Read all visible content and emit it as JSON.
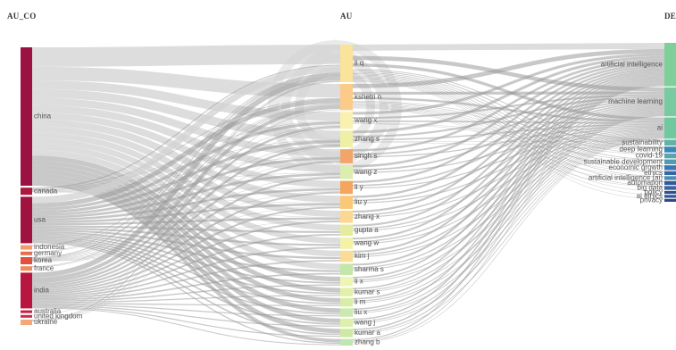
{
  "columns": {
    "left": "AU_CO",
    "middle": "AU",
    "right": "DE"
  },
  "chart_data": {
    "type": "sankey",
    "left_nodes": [
      {
        "label": "china",
        "color": "#9b1142",
        "weight": 155
      },
      {
        "label": "canada",
        "color": "#b0173f",
        "weight": 8
      },
      {
        "label": "usa",
        "color": "#a0123f",
        "weight": 52
      },
      {
        "label": "indonesia",
        "color": "#f59a6a",
        "weight": 5
      },
      {
        "label": "germany",
        "color": "#e86d4a",
        "weight": 4
      },
      {
        "label": "korea",
        "color": "#e04f3f",
        "weight": 8
      },
      {
        "label": "france",
        "color": "#f08a5a",
        "weight": 5
      },
      {
        "label": "india",
        "color": "#b8163f",
        "weight": 40
      },
      {
        "label": "australia",
        "color": "#c41d47",
        "weight": 3
      },
      {
        "label": "united kingdom",
        "color": "#cc2b4a",
        "weight": 3
      },
      {
        "label": "ukraine",
        "color": "#f4a77c",
        "weight": 6
      }
    ],
    "middle_nodes": [
      {
        "label": "li q",
        "color": "#fae39a",
        "weight": 40
      },
      {
        "label": "kshetri n",
        "color": "#fccb8a",
        "weight": 28
      },
      {
        "label": "wang x",
        "color": "#faf0b0",
        "weight": 18
      },
      {
        "label": "zhang s",
        "color": "#eef0a5",
        "weight": 18
      },
      {
        "label": "singh s",
        "color": "#f2a56a",
        "weight": 15
      },
      {
        "label": "wang z",
        "color": "#dcedb0",
        "weight": 15
      },
      {
        "label": "li y",
        "color": "#f4a55e",
        "weight": 14
      },
      {
        "label": "liu y",
        "color": "#fbc877",
        "weight": 14
      },
      {
        "label": "zhang x",
        "color": "#fcd693",
        "weight": 13
      },
      {
        "label": "gupta a",
        "color": "#e6ec9e",
        "weight": 12
      },
      {
        "label": "wang w",
        "color": "#f3f2a6",
        "weight": 12
      },
      {
        "label": "kim j",
        "color": "#fbdc96",
        "weight": 12
      },
      {
        "label": "sharma s",
        "color": "#c3e7a8",
        "weight": 12
      },
      {
        "label": "li x",
        "color": "#eef6b2",
        "weight": 10
      },
      {
        "label": "kumar s",
        "color": "#e3f0a8",
        "weight": 9
      },
      {
        "label": "li m",
        "color": "#d7eea8",
        "weight": 9
      },
      {
        "label": "liu x",
        "color": "#cbeab0",
        "weight": 9
      },
      {
        "label": "wang j",
        "color": "#dff0ad",
        "weight": 9
      },
      {
        "label": "kumar a",
        "color": "#cfe9a5",
        "weight": 9
      },
      {
        "label": "zhang b",
        "color": "#bfe6b0",
        "weight": 7
      }
    ],
    "right_nodes": [
      {
        "label": "artificial intelligence",
        "color": "#7fcf9a",
        "weight": 45
      },
      {
        "label": "machine learning",
        "color": "#78cba0",
        "weight": 30
      },
      {
        "label": "ai",
        "color": "#6fc89e",
        "weight": 22
      },
      {
        "label": "sustainability",
        "color": "#61b3a5",
        "weight": 6
      },
      {
        "label": "deep learning",
        "color": "#3d87b5",
        "weight": 6
      },
      {
        "label": "covid-19",
        "color": "#55a6b0",
        "weight": 5
      },
      {
        "label": "sustainable development",
        "color": "#4f9bb3",
        "weight": 5
      },
      {
        "label": "economic growth",
        "color": "#3a78b0",
        "weight": 5
      },
      {
        "label": "ethics",
        "color": "#3466a8",
        "weight": 4
      },
      {
        "label": "artificial intelligence (ai)",
        "color": "#4a8cb6",
        "weight": 4
      },
      {
        "label": "automation",
        "color": "#2f5a9e",
        "weight": 4
      },
      {
        "label": "big data",
        "color": "#3b62a2",
        "weight": 4
      },
      {
        "label": "policy",
        "color": "#2c4f96",
        "weight": 3
      },
      {
        "label": "ai ethics",
        "color": "#34558f",
        "weight": 3
      },
      {
        "label": "privacy",
        "color": "#2b4a8c",
        "weight": 3
      }
    ]
  }
}
